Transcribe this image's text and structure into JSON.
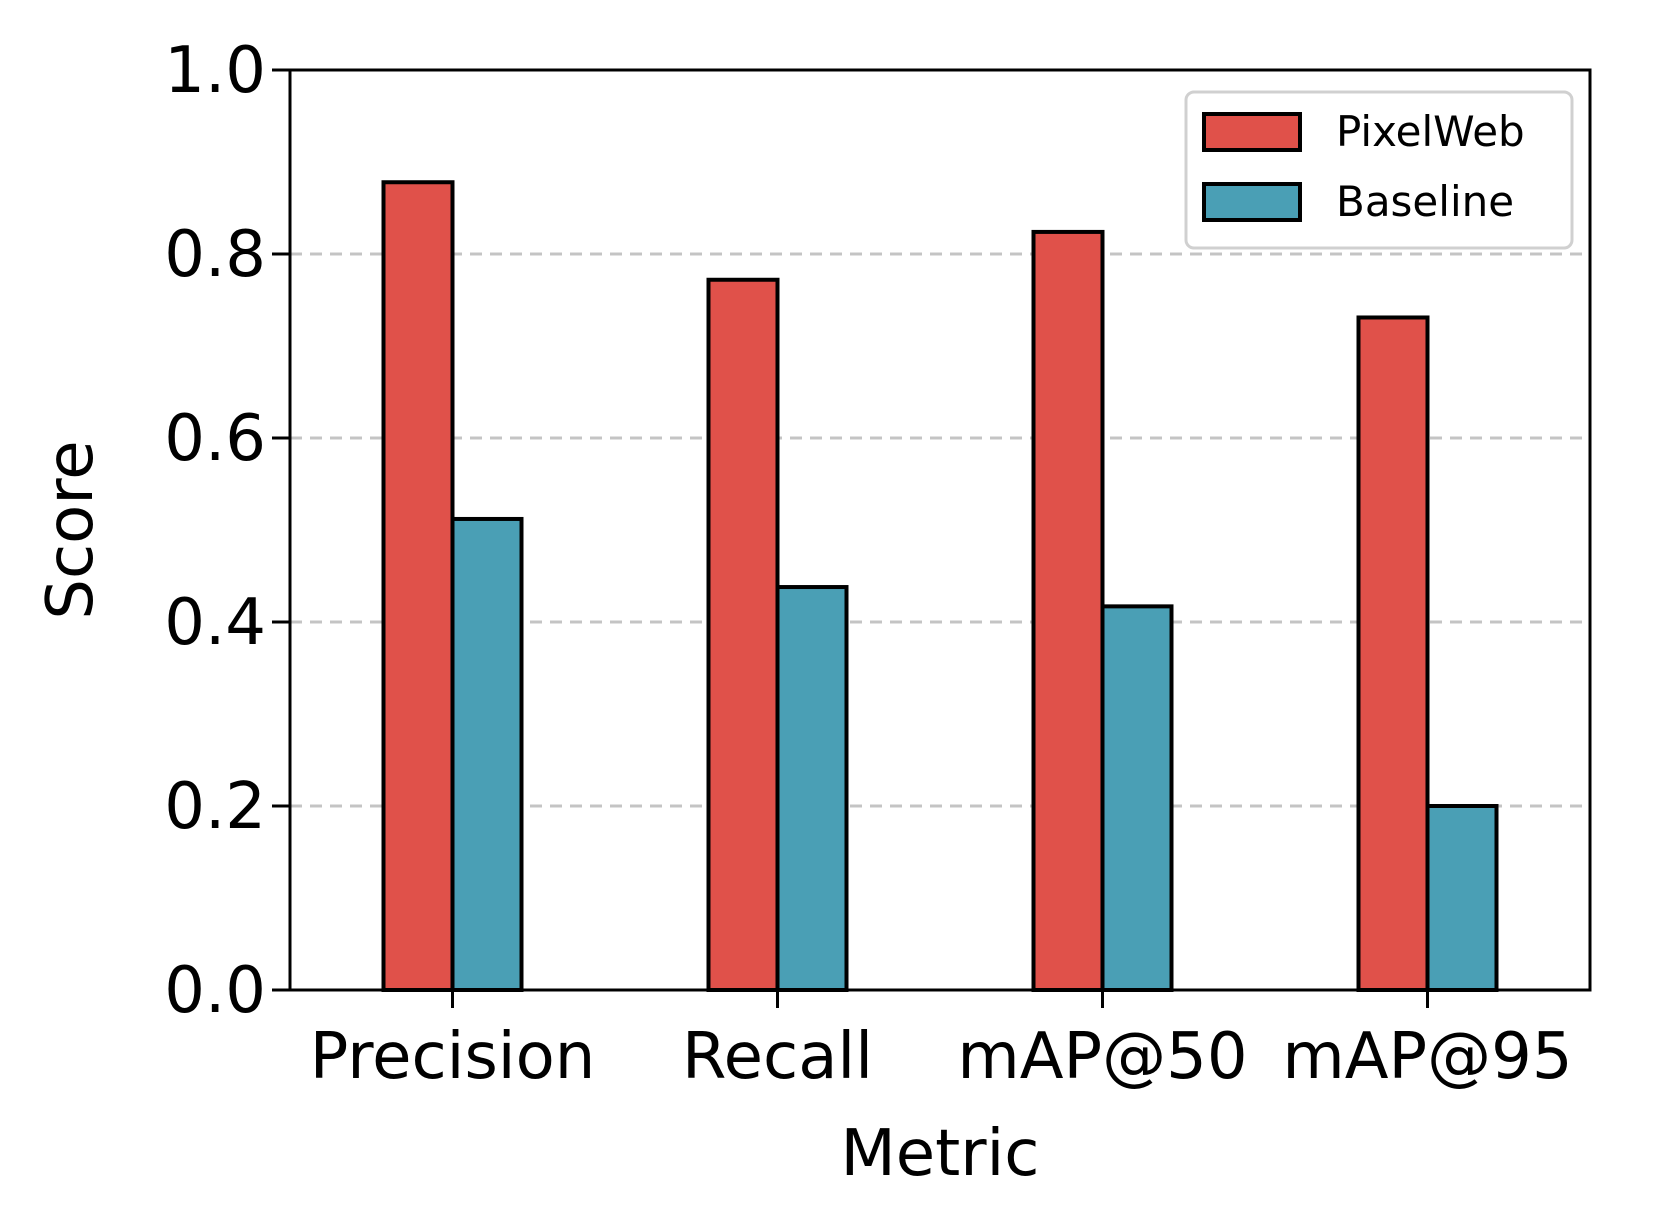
{
  "chart_data": {
    "type": "bar",
    "title": "",
    "xlabel": "Metric",
    "ylabel": "Score",
    "categories": [
      "Precision",
      "Recall",
      "mAP@50",
      "mAP@95"
    ],
    "series": [
      {
        "name": "PixelWeb",
        "values": [
          0.878,
          0.772,
          0.824,
          0.731
        ],
        "color": "#e0514a"
      },
      {
        "name": "Baseline",
        "values": [
          0.512,
          0.438,
          0.417,
          0.2
        ],
        "color": "#4a9fb5"
      }
    ],
    "ylim": [
      0,
      1.0
    ],
    "yticks": [
      "0.0",
      "0.2",
      "0.4",
      "0.6",
      "0.8",
      "1.0"
    ],
    "grid": "y-dashed",
    "legend_position": "top-right"
  }
}
